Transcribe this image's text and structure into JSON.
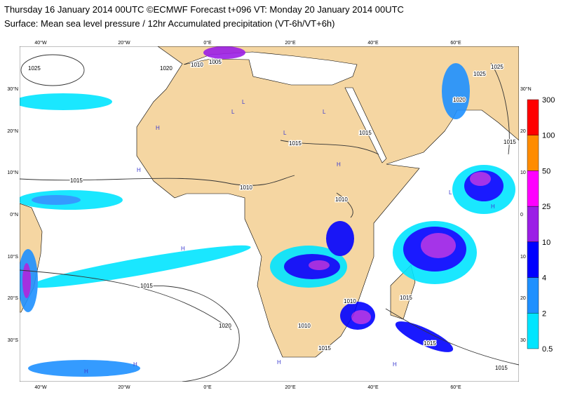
{
  "header": {
    "line1": "Thursday 16 January 2014 00UTC ©ECMWF Forecast t+096 VT: Monday 20 January 2014 00UTC",
    "line2": "Surface: Mean sea level pressure / 12hr Accumulated precipitation (VT-6h/VT+6h)"
  },
  "map": {
    "lon_labels": [
      "40°W",
      "20°W",
      "0°E",
      "20°E",
      "40°E",
      "60°E"
    ],
    "lat_labels_left": [
      "30°N",
      "20°N",
      "10°N",
      "0°N",
      "10°S",
      "20°S",
      "30°S"
    ],
    "lat_labels_right": [
      "30°N",
      "20",
      "10",
      "0",
      "10",
      "20",
      "30"
    ],
    "isobar_labels": [
      "1025",
      "1020",
      "1010",
      "1005",
      "1015",
      "1010",
      "1010",
      "1015",
      "1020",
      "1025",
      "1025",
      "1015",
      "1015",
      "1015",
      "1020",
      "1010",
      "1015",
      "1010",
      "1015",
      "1015",
      "1015"
    ],
    "pressure_centres": [
      "L",
      "L",
      "L",
      "L",
      "H",
      "H",
      "H",
      "H",
      "H",
      "H",
      "H",
      "H",
      "L",
      "H"
    ]
  },
  "legend": {
    "labels": [
      300,
      100,
      50,
      25,
      10,
      4,
      2,
      0.5
    ],
    "colors": [
      "#ff0000",
      "#ff8c00",
      "#ff00ff",
      "#9b1ee6",
      "#0000ff",
      "#1e90ff",
      "#00e5ff"
    ]
  }
}
